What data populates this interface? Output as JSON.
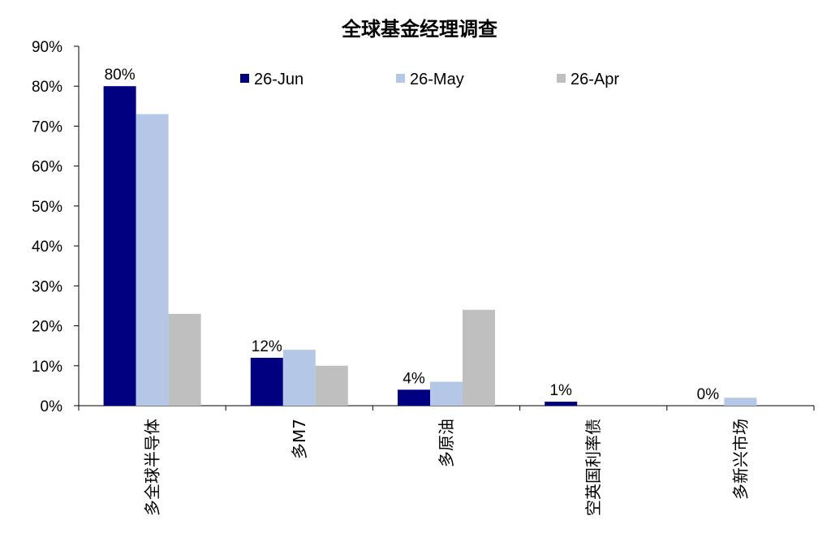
{
  "chart_data": {
    "type": "bar",
    "title": "全球基金经理调查",
    "xlabel": "",
    "ylabel": "",
    "categories": [
      "多全球半导体",
      "多M7",
      "多原油",
      "空英国利率债",
      "多新兴市场"
    ],
    "series": [
      {
        "name": "26-Jun",
        "color": "#000080",
        "values": [
          80,
          12,
          4,
          1,
          0
        ]
      },
      {
        "name": "26-May",
        "color": "#B4C7E7",
        "values": [
          73,
          14,
          6,
          0,
          2
        ]
      },
      {
        "name": "26-Apr",
        "color": "#BFBFBF",
        "values": [
          23,
          10,
          24,
          0,
          0
        ]
      }
    ],
    "data_labels": {
      "series": "26-Jun",
      "texts": [
        "80%",
        "12%",
        "4%",
        "1%",
        "0%"
      ]
    },
    "ylim": [
      0,
      90
    ],
    "yticks": [
      "0%",
      "10%",
      "20%",
      "30%",
      "40%",
      "50%",
      "60%",
      "70%",
      "80%",
      "90%"
    ],
    "grid": false,
    "legend_position": "top"
  }
}
